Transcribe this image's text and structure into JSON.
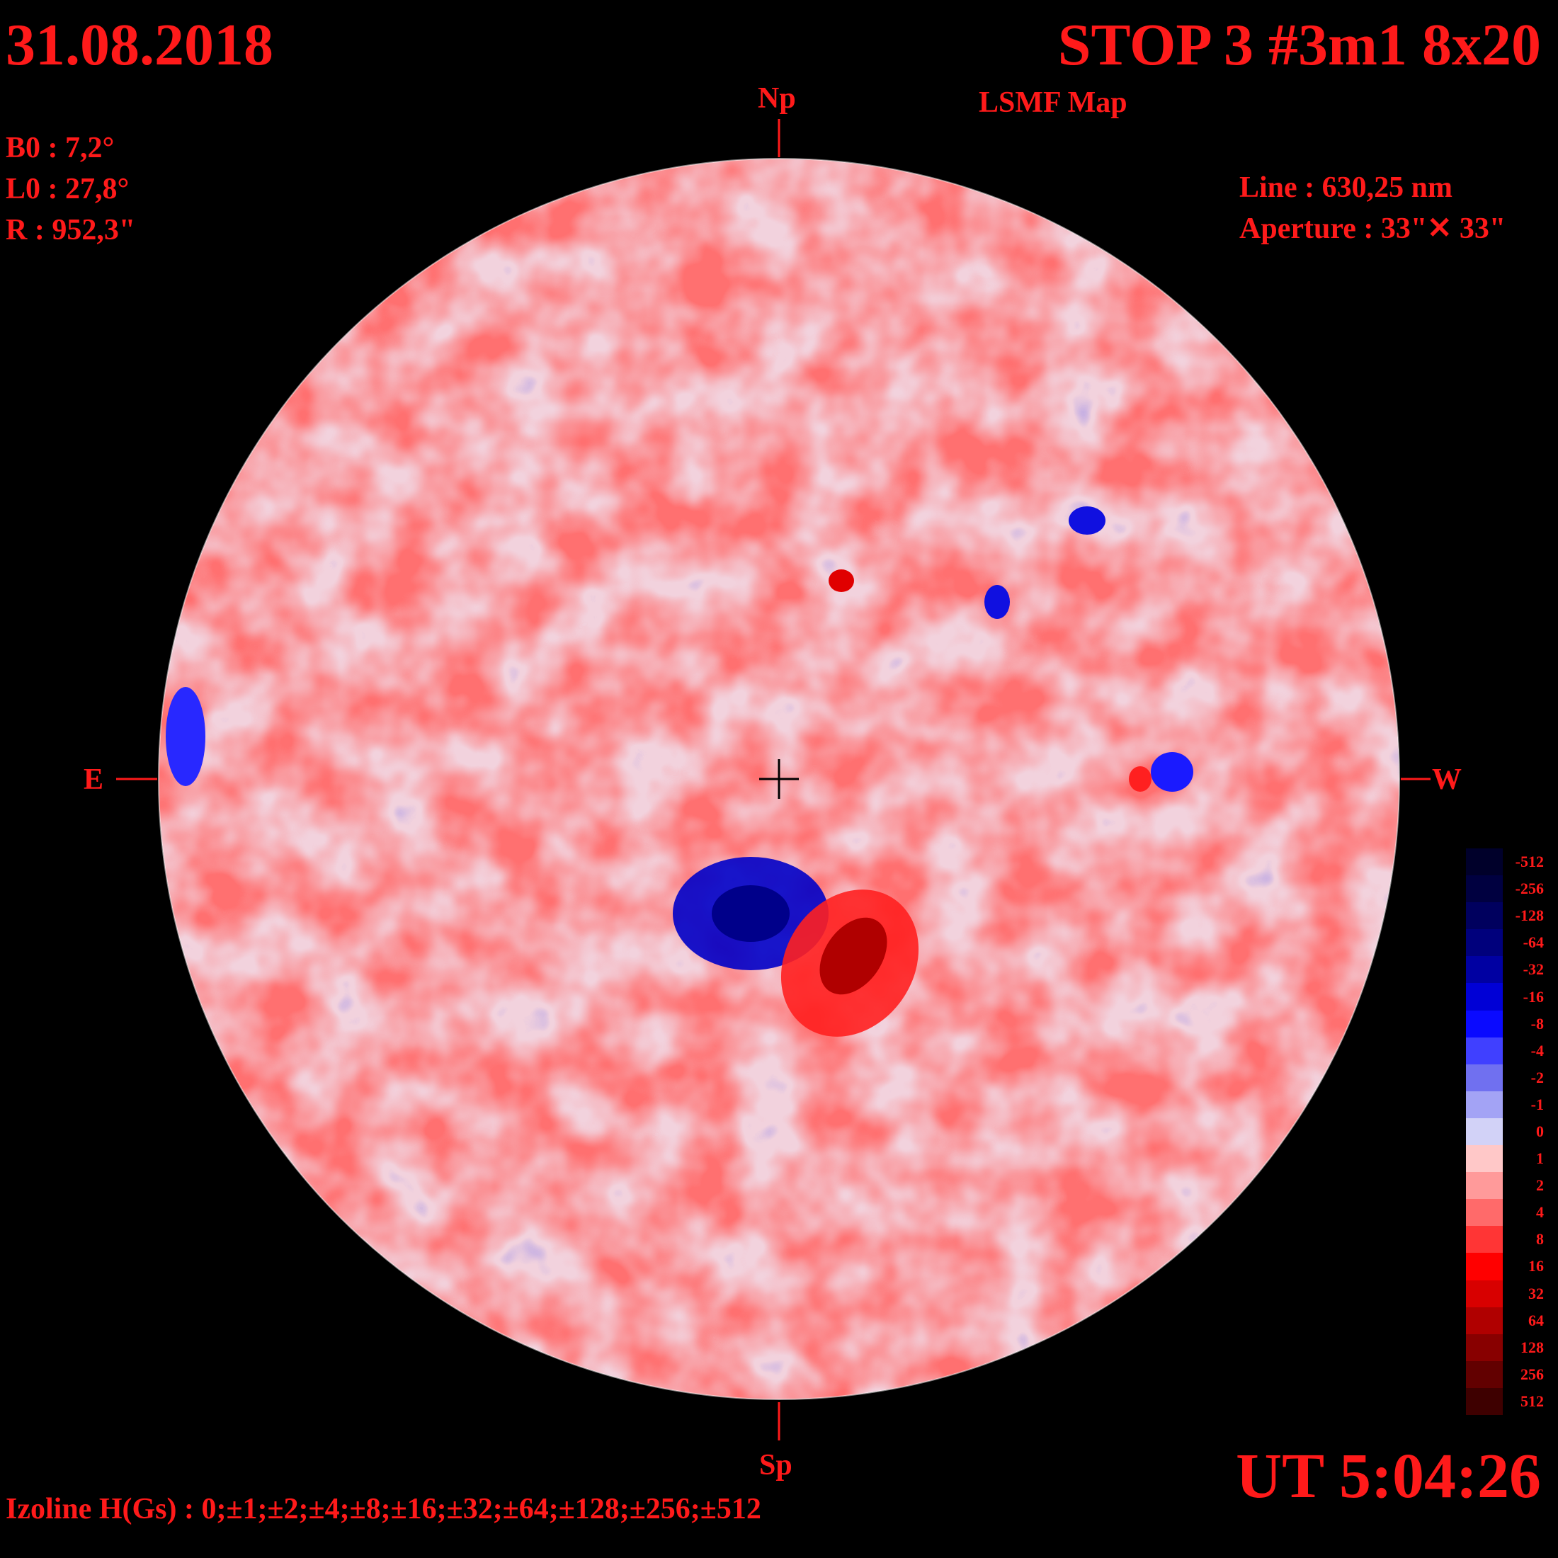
{
  "header": {
    "date": "31.08.2018",
    "title": "STOP 3 #3m1 8x20",
    "subtitle": "LSMF  Map"
  },
  "params": {
    "b0": "B0 : 7,2°",
    "l0": "L0 : 27,8°",
    "r": "R  : 952,3\""
  },
  "instrument": {
    "line": "Line :  630,25 nm",
    "aperture": "Aperture : 33\"✕ 33\""
  },
  "directions": {
    "north": "Np",
    "south": "Sp",
    "east": "E",
    "west": "W"
  },
  "time": "UT 5:04:26",
  "izoline": "Izoline H(Gs) : 0;±1;±2;±4;±8;±16;±32;±64;±128;±256;±512",
  "colors": {
    "text": "#ff1a1a",
    "background": "#000000"
  },
  "colorbar": {
    "levels": [
      {
        "label": "-512",
        "color": "#00002a"
      },
      {
        "label": "-256",
        "color": "#000040"
      },
      {
        "label": "-128",
        "color": "#00005e"
      },
      {
        "label": "-64",
        "color": "#00007c"
      },
      {
        "label": "-32",
        "color": "#0000a2"
      },
      {
        "label": "-16",
        "color": "#0000d6"
      },
      {
        "label": "-8",
        "color": "#0a0aff"
      },
      {
        "label": "-4",
        "color": "#4040ff"
      },
      {
        "label": "-2",
        "color": "#7070f0"
      },
      {
        "label": "-1",
        "color": "#a3a3f5"
      },
      {
        "label": "0",
        "color": "#d2d2f7"
      },
      {
        "label": "1",
        "color": "#ffc8c8"
      },
      {
        "label": "2",
        "color": "#ff9a9a"
      },
      {
        "label": "4",
        "color": "#ff6a6a"
      },
      {
        "label": "8",
        "color": "#ff3535"
      },
      {
        "label": "16",
        "color": "#ff0000"
      },
      {
        "label": "32",
        "color": "#d80000"
      },
      {
        "label": "64",
        "color": "#b00000"
      },
      {
        "label": "128",
        "color": "#880000"
      },
      {
        "label": "256",
        "color": "#620000"
      },
      {
        "label": "512",
        "color": "#3e0000"
      }
    ]
  }
}
